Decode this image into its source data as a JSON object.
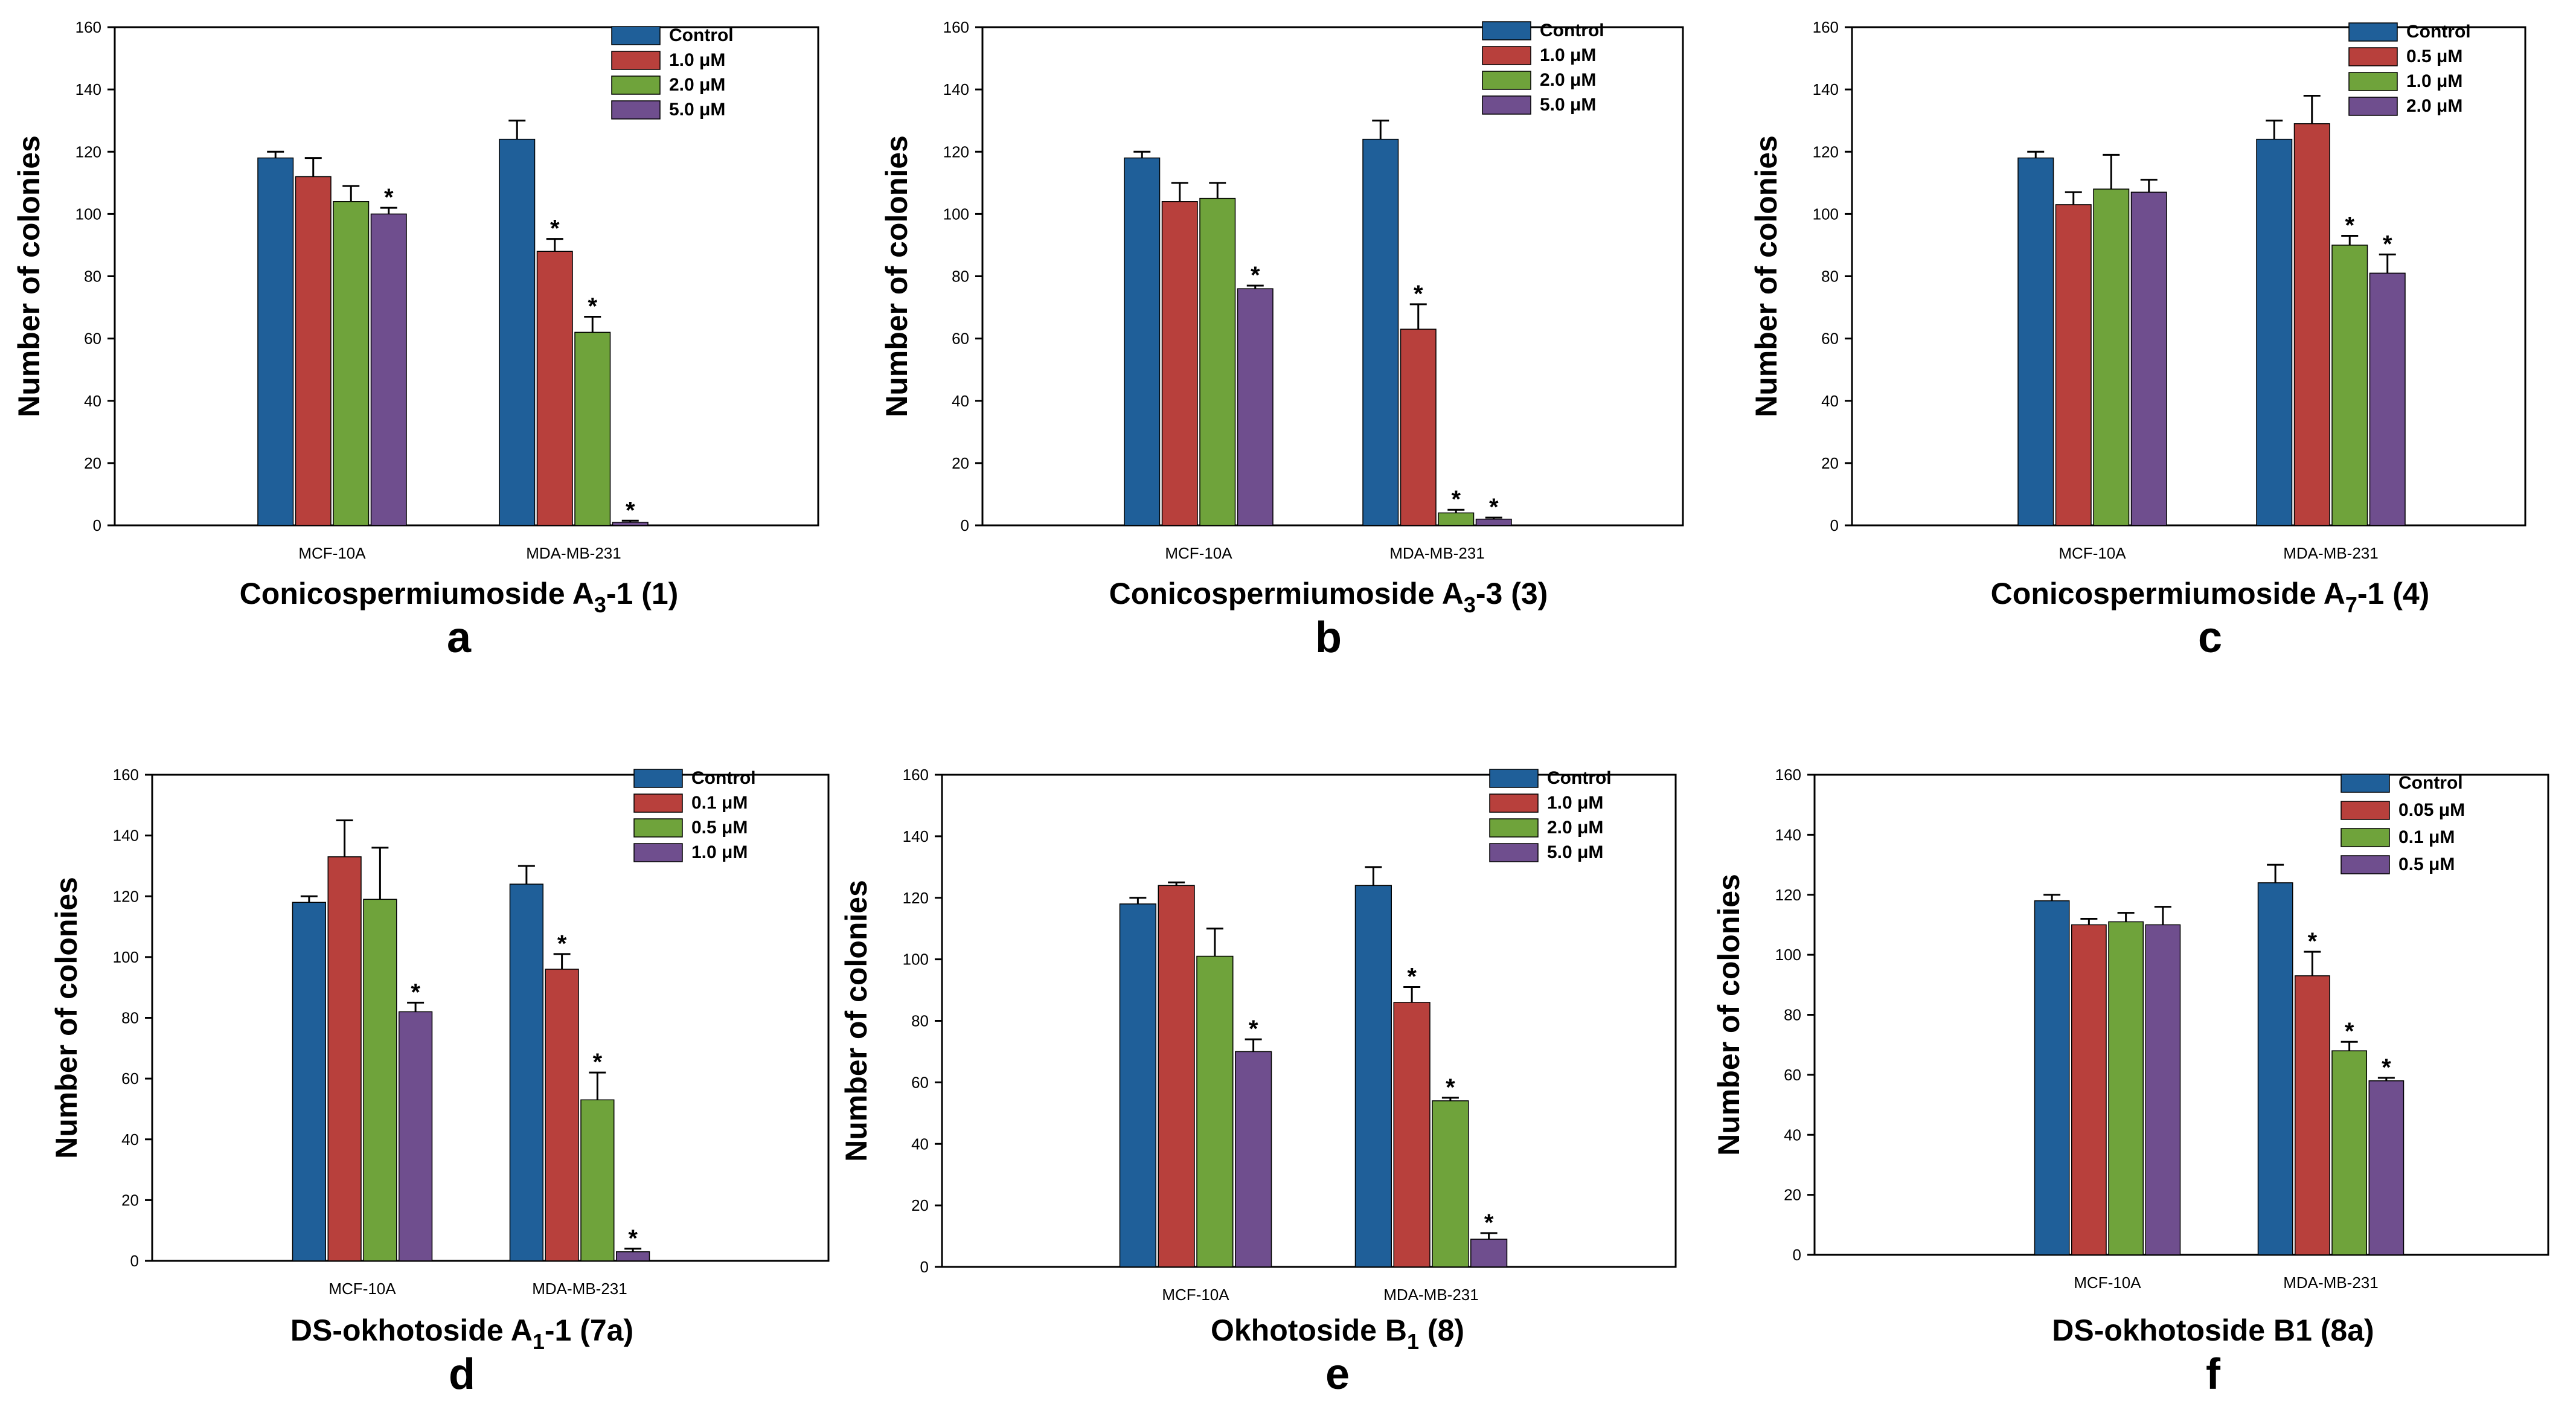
{
  "figure": {
    "series_colors": [
      "#1f5f99",
      "#b8403c",
      "#6fa33b",
      "#6f4e8e"
    ]
  },
  "chart_data": [
    {
      "type": "bar",
      "panel_letter": "a",
      "title": "Conicospermiumoside A",
      "title_sub": "3",
      "title_suffix": "-1 (1)",
      "ylabel": "Number of colonies",
      "ylim": [
        0,
        160
      ],
      "yticks": [
        0,
        20,
        40,
        60,
        80,
        100,
        120,
        140,
        160
      ],
      "categories": [
        "MCF-10A",
        "MDA-MB-231"
      ],
      "series": [
        {
          "name": "Control",
          "values": [
            118,
            124
          ],
          "errors": [
            2,
            6
          ],
          "significant": [
            false,
            false
          ]
        },
        {
          "name": "1.0 μM",
          "values": [
            112,
            88
          ],
          "errors": [
            6,
            4
          ],
          "significant": [
            false,
            true
          ]
        },
        {
          "name": "2.0 μM",
          "values": [
            104,
            62
          ],
          "errors": [
            5,
            5
          ],
          "significant": [
            false,
            true
          ]
        },
        {
          "name": "5.0 μM",
          "values": [
            100,
            1
          ],
          "errors": [
            2,
            0.5
          ],
          "significant": [
            true,
            true
          ]
        }
      ]
    },
    {
      "type": "bar",
      "panel_letter": "b",
      "title": "Conicospermiumoside A",
      "title_sub": "3",
      "title_suffix": "-3 (3)",
      "ylabel": "Number of colonies",
      "ylim": [
        0,
        160
      ],
      "yticks": [
        0,
        20,
        40,
        60,
        80,
        100,
        120,
        140,
        160
      ],
      "categories": [
        "MCF-10A",
        "MDA-MB-231"
      ],
      "series": [
        {
          "name": "Control",
          "values": [
            118,
            124
          ],
          "errors": [
            2,
            6
          ],
          "significant": [
            false,
            false
          ]
        },
        {
          "name": "1.0 μM",
          "values": [
            104,
            63
          ],
          "errors": [
            6,
            8
          ],
          "significant": [
            false,
            true
          ]
        },
        {
          "name": "2.0 μM",
          "values": [
            105,
            4
          ],
          "errors": [
            5,
            1
          ],
          "significant": [
            false,
            true
          ]
        },
        {
          "name": "5.0 μM",
          "values": [
            76,
            2
          ],
          "errors": [
            1,
            0.5
          ],
          "significant": [
            true,
            true
          ]
        }
      ]
    },
    {
      "type": "bar",
      "panel_letter": "c",
      "title": "Conicospermiumoside A",
      "title_sub": "7",
      "title_suffix": "-1 (4)",
      "ylabel": "Number of colonies",
      "ylim": [
        0,
        160
      ],
      "yticks": [
        0,
        20,
        40,
        60,
        80,
        100,
        120,
        140,
        160
      ],
      "categories": [
        "MCF-10A",
        "MDA-MB-231"
      ],
      "series": [
        {
          "name": "Control",
          "values": [
            118,
            124
          ],
          "errors": [
            2,
            6
          ],
          "significant": [
            false,
            false
          ]
        },
        {
          "name": "0.5 μM",
          "values": [
            103,
            129
          ],
          "errors": [
            4,
            9
          ],
          "significant": [
            false,
            false
          ]
        },
        {
          "name": "1.0 μM",
          "values": [
            108,
            90
          ],
          "errors": [
            11,
            3
          ],
          "significant": [
            false,
            true
          ]
        },
        {
          "name": "2.0 μM",
          "values": [
            107,
            81
          ],
          "errors": [
            4,
            6
          ],
          "significant": [
            false,
            true
          ]
        }
      ]
    },
    {
      "type": "bar",
      "panel_letter": "d",
      "title": "DS-okhotoside A",
      "title_sub": "1",
      "title_suffix": "-1 (7a)",
      "ylabel": "Number of colonies",
      "ylim": [
        0,
        160
      ],
      "yticks": [
        0,
        20,
        40,
        60,
        80,
        100,
        120,
        140,
        160
      ],
      "categories": [
        "MCF-10A",
        "MDA-MB-231"
      ],
      "series": [
        {
          "name": "Control",
          "values": [
            118,
            124
          ],
          "errors": [
            2,
            6
          ],
          "significant": [
            false,
            false
          ]
        },
        {
          "name": "0.1 μM",
          "values": [
            133,
            96
          ],
          "errors": [
            12,
            5
          ],
          "significant": [
            false,
            true
          ]
        },
        {
          "name": "0.5 μM",
          "values": [
            119,
            53
          ],
          "errors": [
            17,
            9
          ],
          "significant": [
            false,
            true
          ]
        },
        {
          "name": "1.0 μM",
          "values": [
            82,
            3
          ],
          "errors": [
            3,
            1
          ],
          "significant": [
            true,
            true
          ]
        }
      ]
    },
    {
      "type": "bar",
      "panel_letter": "e",
      "title": "Okhotoside B",
      "title_sub": "1",
      "title_suffix": " (8)",
      "ylabel": "Number of colonies",
      "ylim": [
        0,
        160
      ],
      "yticks": [
        0,
        20,
        40,
        60,
        80,
        100,
        120,
        140,
        160
      ],
      "categories": [
        "MCF-10A",
        "MDA-MB-231"
      ],
      "series": [
        {
          "name": "Control",
          "values": [
            118,
            124
          ],
          "errors": [
            2,
            6
          ],
          "significant": [
            false,
            false
          ]
        },
        {
          "name": "1.0 μM",
          "values": [
            124,
            86
          ],
          "errors": [
            1,
            5
          ],
          "significant": [
            false,
            true
          ]
        },
        {
          "name": "2.0 μM",
          "values": [
            101,
            54
          ],
          "errors": [
            9,
            1
          ],
          "significant": [
            false,
            true
          ]
        },
        {
          "name": "5.0 μM",
          "values": [
            70,
            9
          ],
          "errors": [
            4,
            2
          ],
          "significant": [
            true,
            true
          ]
        }
      ]
    },
    {
      "type": "bar",
      "panel_letter": "f",
      "title": "DS-okhotoside B1 (8a)",
      "title_sub": "",
      "title_suffix": "",
      "ylabel": "Number of colonies",
      "ylim": [
        0,
        160
      ],
      "yticks": [
        0,
        20,
        40,
        60,
        80,
        100,
        120,
        140,
        160
      ],
      "categories": [
        "MCF-10A",
        "MDA-MB-231"
      ],
      "series": [
        {
          "name": "Control",
          "values": [
            118,
            124
          ],
          "errors": [
            2,
            6
          ],
          "significant": [
            false,
            false
          ]
        },
        {
          "name": "0.05 μM",
          "values": [
            110,
            93
          ],
          "errors": [
            2,
            8
          ],
          "significant": [
            false,
            true
          ]
        },
        {
          "name": "0.1  μM",
          "values": [
            111,
            68
          ],
          "errors": [
            3,
            3
          ],
          "significant": [
            false,
            true
          ]
        },
        {
          "name": "0.5 μM",
          "values": [
            110,
            58
          ],
          "errors": [
            6,
            1
          ],
          "significant": [
            false,
            true
          ]
        }
      ]
    }
  ]
}
